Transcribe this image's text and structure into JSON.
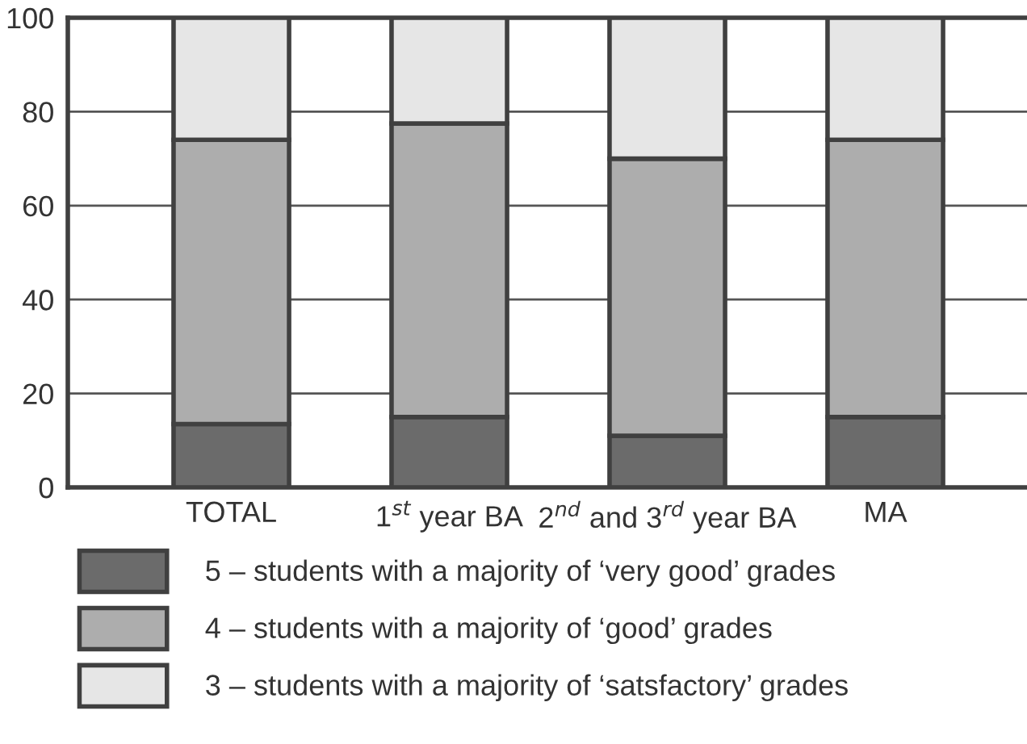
{
  "chart_data": {
    "type": "bar",
    "stacked": true,
    "categories": [
      "TOTAL",
      "1$^{st}$ year BA",
      "2$^{nd}$ and 3$^{rd}$ year BA",
      "MA"
    ],
    "series": [
      {
        "name": "5 – students with a majority of ‘very good’ grades",
        "color": "#6b6b6b",
        "values": [
          13.5,
          15,
          11,
          15
        ]
      },
      {
        "name": "4 – students with a majority of ‘good’ grades",
        "color": "#adadad",
        "values": [
          60.5,
          62.5,
          59,
          59
        ]
      },
      {
        "name": "3 – students with a majority of ‘satsfactory’ grades",
        "color": "#e6e6e6",
        "values": [
          26,
          22.5,
          30,
          26
        ]
      }
    ],
    "ylim": [
      0,
      100
    ],
    "yticks": [
      0,
      20,
      40,
      60,
      80,
      100
    ],
    "grid": "y",
    "legend": "bottom"
  }
}
